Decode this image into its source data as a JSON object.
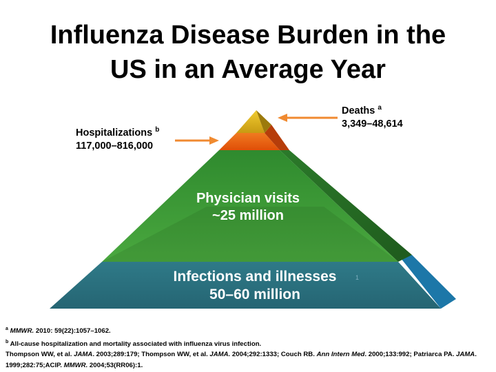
{
  "title": {
    "line1": "Influenza Disease Burden in the",
    "line2": "US in an Average Year"
  },
  "colors": {
    "infections_tier": "#2b6f7e",
    "physician_tier": "#3e9a3c",
    "hospitalization_tier": "#e85d10",
    "deaths_tier": "#d9b21a",
    "arrow": "#f08a30"
  },
  "hospitalizations": {
    "label": "Hospitalizations",
    "marker": "b",
    "value": "117,000–816,000"
  },
  "deaths": {
    "label": "Deaths",
    "marker": "a",
    "value": "3,349–48,614"
  },
  "physician_visits": {
    "label": "Physician visits",
    "value": "~25 million"
  },
  "infections": {
    "label": "Infections and illnesses",
    "value": "50–60 million"
  },
  "slide_number": "1",
  "footnotes": {
    "a_marker": "a",
    "a_journal": "MMWR.",
    "a_rest": " 2010: 59(22):1057–1062.",
    "b_marker": "b",
    "b_text": "All-cause hospitalization and mortality associated with influenza virus infection.",
    "ref_part1": "Thompson WW, et al. ",
    "ref_jama1": "JAMA",
    "ref_part2": ". 2003;289:179; Thompson WW, et al. ",
    "ref_jama2": "JAMA.",
    "ref_part3": " 2004;292:1333; Couch RB. ",
    "ref_annals": "Ann Intern Med",
    "ref_part4": ". 2000;133:992; Patriarca PA. ",
    "ref_jama3": "JAMA",
    "ref_part5": ". 1999;282:75;ACIP. ",
    "ref_mmwr": "MMWR.",
    "ref_part6": " 2004;53(RR06):1."
  }
}
